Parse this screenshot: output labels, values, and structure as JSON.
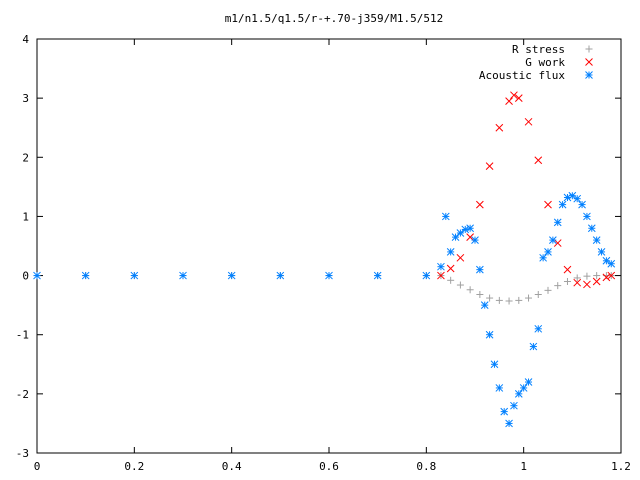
{
  "chart_data": {
    "type": "scatter",
    "title": "m1/n1.5/q1.5/r-+.70-j359/M1.5/512",
    "xlabel": "",
    "ylabel": "",
    "xlim": [
      0,
      1.2
    ],
    "ylim": [
      -3,
      4
    ],
    "x_ticks": [
      "0",
      "0.2",
      "0.4",
      "0.6",
      "0.8",
      "1",
      "1.2"
    ],
    "y_ticks": [
      "4",
      "3",
      "2",
      "1",
      "0",
      "-1",
      "-2",
      "-3"
    ],
    "grid": false,
    "legend_position": "top-right",
    "series": [
      {
        "name": "R stress",
        "marker": "plus",
        "color": "#a0a0a0",
        "x": [
          0.0,
          0.1,
          0.2,
          0.3,
          0.4,
          0.5,
          0.6,
          0.7,
          0.8,
          0.83,
          0.85,
          0.87,
          0.89,
          0.91,
          0.93,
          0.95,
          0.97,
          0.99,
          1.01,
          1.03,
          1.05,
          1.07,
          1.09,
          1.11,
          1.13,
          1.15,
          1.17,
          1.18
        ],
        "y": [
          0,
          0,
          0,
          0,
          0,
          0,
          0,
          0,
          0,
          0.0,
          -0.08,
          -0.16,
          -0.24,
          -0.32,
          -0.38,
          -0.42,
          -0.43,
          -0.42,
          -0.38,
          -0.32,
          -0.25,
          -0.17,
          -0.1,
          -0.04,
          -0.01,
          0.0,
          0.0,
          0.0
        ]
      },
      {
        "name": "G work",
        "marker": "cross",
        "color": "#ff0000",
        "x": [
          0.83,
          0.85,
          0.87,
          0.89,
          0.91,
          0.93,
          0.95,
          0.97,
          0.98,
          0.99,
          1.01,
          1.03,
          1.05,
          1.07,
          1.09,
          1.11,
          1.13,
          1.15,
          1.17,
          1.18
        ],
        "y": [
          0.0,
          0.12,
          0.3,
          0.65,
          1.2,
          1.85,
          2.5,
          2.95,
          3.05,
          3.0,
          2.6,
          1.95,
          1.2,
          0.55,
          0.1,
          -0.12,
          -0.15,
          -0.1,
          -0.03,
          0.0
        ]
      },
      {
        "name": "Acoustic flux",
        "marker": "star",
        "color": "#0080ff",
        "x": [
          0.0,
          0.1,
          0.2,
          0.3,
          0.4,
          0.5,
          0.6,
          0.7,
          0.8,
          0.83,
          0.84,
          0.85,
          0.86,
          0.87,
          0.88,
          0.89,
          0.9,
          0.91,
          0.92,
          0.93,
          0.94,
          0.95,
          0.96,
          0.97,
          0.98,
          0.99,
          1.0,
          1.01,
          1.02,
          1.03,
          1.04,
          1.05,
          1.06,
          1.07,
          1.08,
          1.09,
          1.1,
          1.11,
          1.12,
          1.13,
          1.14,
          1.15,
          1.16,
          1.17,
          1.18
        ],
        "y": [
          0,
          0,
          0,
          0,
          0,
          0,
          0,
          0,
          0,
          0.15,
          1.0,
          0.4,
          0.65,
          0.72,
          0.78,
          0.8,
          0.6,
          0.1,
          -0.5,
          -1.0,
          -1.5,
          -1.9,
          -2.3,
          -2.5,
          -2.2,
          -2.0,
          -1.9,
          -1.8,
          -1.2,
          -0.9,
          0.3,
          0.4,
          0.6,
          0.9,
          1.2,
          1.32,
          1.35,
          1.3,
          1.2,
          1.0,
          0.8,
          0.6,
          0.4,
          0.25,
          0.2
        ]
      }
    ]
  }
}
